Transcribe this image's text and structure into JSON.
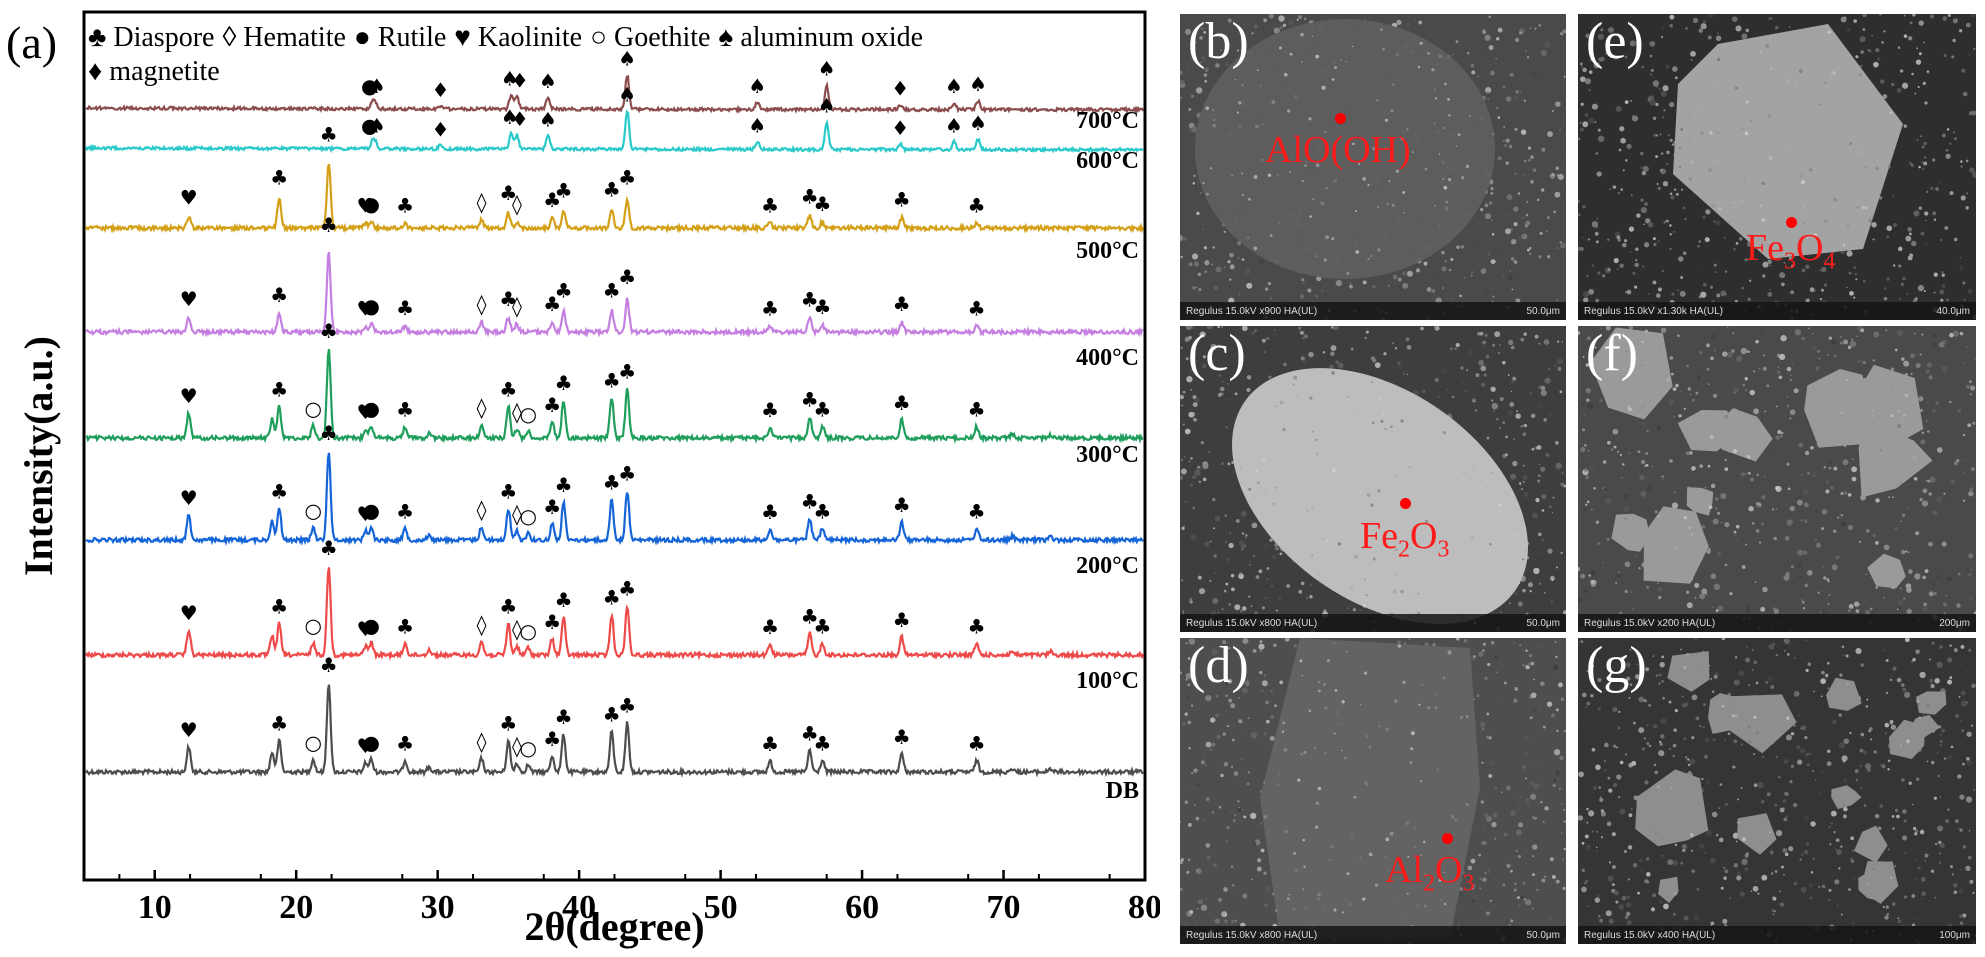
{
  "panel_a": {
    "label": "(a)",
    "xlabel": "2θ(degree)",
    "ylabel": "Intensity(a.u.)",
    "legend_line1": [
      {
        "symbol": "♣",
        "name": "Diaspore"
      },
      {
        "symbol": "◊",
        "name": "Hematite"
      },
      {
        "symbol": "●",
        "name": "Rutile"
      },
      {
        "symbol": "♥",
        "name": "Kaolinite"
      },
      {
        "symbol": "○",
        "name": "Goethite"
      },
      {
        "symbol": "♠",
        "name": "aluminum oxide"
      }
    ],
    "legend_line2": [
      {
        "symbol": "♦",
        "name": "magnetite"
      }
    ]
  },
  "chart_data": {
    "type": "line",
    "xlabel": "2θ(degree)",
    "ylabel": "Intensity(a.u.)",
    "xlim": [
      5,
      80
    ],
    "x_ticks": [
      10,
      20,
      30,
      40,
      50,
      60,
      70,
      80
    ],
    "grid": false,
    "series": [
      {
        "name": "DB",
        "color": "#4d4d4d",
        "peaks": [
          [
            12.4,
            0.28
          ],
          [
            18.3,
            0.22
          ],
          [
            18.8,
            0.35
          ],
          [
            21.2,
            0.14
          ],
          [
            22.3,
            1.0
          ],
          [
            24.9,
            0.1
          ],
          [
            25.3,
            0.14
          ],
          [
            27.7,
            0.13
          ],
          [
            29.4,
            0.06
          ],
          [
            33.1,
            0.15
          ],
          [
            35.0,
            0.35
          ],
          [
            35.6,
            0.1
          ],
          [
            36.4,
            0.08
          ],
          [
            38.1,
            0.18
          ],
          [
            38.9,
            0.42
          ],
          [
            42.3,
            0.45
          ],
          [
            43.4,
            0.55
          ],
          [
            53.5,
            0.12
          ],
          [
            56.3,
            0.24
          ],
          [
            57.2,
            0.13
          ],
          [
            62.8,
            0.2
          ],
          [
            68.1,
            0.13
          ],
          [
            70.6,
            0.04
          ],
          [
            73.3,
            0.04
          ]
        ]
      },
      {
        "name": "100°C",
        "color": "#ee4a4a",
        "peaks": [
          [
            12.4,
            0.28
          ],
          [
            18.3,
            0.22
          ],
          [
            18.8,
            0.35
          ],
          [
            21.2,
            0.14
          ],
          [
            22.3,
            1.0
          ],
          [
            24.9,
            0.1
          ],
          [
            25.3,
            0.14
          ],
          [
            27.7,
            0.13
          ],
          [
            29.4,
            0.06
          ],
          [
            33.1,
            0.15
          ],
          [
            35.0,
            0.35
          ],
          [
            35.6,
            0.1
          ],
          [
            36.4,
            0.08
          ],
          [
            38.1,
            0.18
          ],
          [
            38.9,
            0.42
          ],
          [
            42.3,
            0.45
          ],
          [
            43.4,
            0.55
          ],
          [
            53.5,
            0.12
          ],
          [
            56.3,
            0.24
          ],
          [
            57.2,
            0.13
          ],
          [
            62.8,
            0.2
          ],
          [
            68.1,
            0.13
          ],
          [
            70.6,
            0.04
          ],
          [
            73.3,
            0.04
          ]
        ]
      },
      {
        "name": "200°C",
        "color": "#1565d8",
        "peaks": [
          [
            12.4,
            0.28
          ],
          [
            18.3,
            0.22
          ],
          [
            18.8,
            0.35
          ],
          [
            21.2,
            0.14
          ],
          [
            22.3,
            1.0
          ],
          [
            24.9,
            0.1
          ],
          [
            25.3,
            0.14
          ],
          [
            27.7,
            0.13
          ],
          [
            29.4,
            0.06
          ],
          [
            33.1,
            0.15
          ],
          [
            35.0,
            0.35
          ],
          [
            35.6,
            0.1
          ],
          [
            36.4,
            0.08
          ],
          [
            38.1,
            0.18
          ],
          [
            38.9,
            0.42
          ],
          [
            42.3,
            0.45
          ],
          [
            43.4,
            0.55
          ],
          [
            53.5,
            0.12
          ],
          [
            56.3,
            0.24
          ],
          [
            57.2,
            0.13
          ],
          [
            62.8,
            0.2
          ],
          [
            68.1,
            0.13
          ],
          [
            70.6,
            0.04
          ],
          [
            73.3,
            0.04
          ]
        ]
      },
      {
        "name": "300°C",
        "color": "#1f9e5c",
        "peaks": [
          [
            12.4,
            0.28
          ],
          [
            18.3,
            0.22
          ],
          [
            18.8,
            0.35
          ],
          [
            21.2,
            0.14
          ],
          [
            22.3,
            1.0
          ],
          [
            24.9,
            0.1
          ],
          [
            25.3,
            0.14
          ],
          [
            27.7,
            0.13
          ],
          [
            29.4,
            0.06
          ],
          [
            33.1,
            0.15
          ],
          [
            35.0,
            0.35
          ],
          [
            35.6,
            0.1
          ],
          [
            36.4,
            0.08
          ],
          [
            38.1,
            0.18
          ],
          [
            38.9,
            0.42
          ],
          [
            42.3,
            0.45
          ],
          [
            43.4,
            0.55
          ],
          [
            53.5,
            0.12
          ],
          [
            56.3,
            0.24
          ],
          [
            57.2,
            0.13
          ],
          [
            62.8,
            0.2
          ],
          [
            68.1,
            0.13
          ],
          [
            70.6,
            0.04
          ],
          [
            73.3,
            0.04
          ]
        ]
      },
      {
        "name": "400°C",
        "color": "#c57fe0",
        "peaks": [
          [
            12.4,
            0.18
          ],
          [
            18.8,
            0.22
          ],
          [
            22.3,
            1.0
          ],
          [
            24.9,
            0.07
          ],
          [
            25.3,
            0.1
          ],
          [
            27.7,
            0.08
          ],
          [
            33.1,
            0.12
          ],
          [
            35.0,
            0.18
          ],
          [
            35.6,
            0.1
          ],
          [
            38.1,
            0.12
          ],
          [
            38.9,
            0.27
          ],
          [
            42.3,
            0.27
          ],
          [
            43.4,
            0.42
          ],
          [
            53.5,
            0.07
          ],
          [
            56.3,
            0.17
          ],
          [
            57.2,
            0.09
          ],
          [
            62.8,
            0.12
          ],
          [
            68.1,
            0.07
          ]
        ]
      },
      {
        "name": "500°C",
        "color": "#d4a017",
        "peaks": [
          [
            12.4,
            0.15
          ],
          [
            18.8,
            0.37
          ],
          [
            22.3,
            0.85
          ],
          [
            24.9,
            0.06
          ],
          [
            25.3,
            0.08
          ],
          [
            27.7,
            0.06
          ],
          [
            33.1,
            0.1
          ],
          [
            35.0,
            0.2
          ],
          [
            35.6,
            0.08
          ],
          [
            38.1,
            0.12
          ],
          [
            38.9,
            0.23
          ],
          [
            42.3,
            0.24
          ],
          [
            43.4,
            0.37
          ],
          [
            53.5,
            0.06
          ],
          [
            56.3,
            0.16
          ],
          [
            57.2,
            0.08
          ],
          [
            62.8,
            0.13
          ],
          [
            68.1,
            0.06
          ]
        ]
      },
      {
        "name": "600°C",
        "color": "#2bc9c9",
        "peaks": [
          [
            25.4,
            0.13
          ],
          [
            25.6,
            0.1
          ],
          [
            30.2,
            0.06
          ],
          [
            35.2,
            0.28
          ],
          [
            35.6,
            0.24
          ],
          [
            37.8,
            0.23
          ],
          [
            43.4,
            0.66
          ],
          [
            52.6,
            0.13
          ],
          [
            57.5,
            0.47
          ],
          [
            62.7,
            0.09
          ],
          [
            66.5,
            0.13
          ],
          [
            68.2,
            0.17
          ]
        ]
      },
      {
        "name": "700°C",
        "color": "#8b4d4d",
        "peaks": [
          [
            25.4,
            0.13
          ],
          [
            25.6,
            0.1
          ],
          [
            30.2,
            0.06
          ],
          [
            35.2,
            0.28
          ],
          [
            35.6,
            0.24
          ],
          [
            37.8,
            0.23
          ],
          [
            43.4,
            0.66
          ],
          [
            52.6,
            0.13
          ],
          [
            57.5,
            0.47
          ],
          [
            62.7,
            0.09
          ],
          [
            66.5,
            0.13
          ],
          [
            68.2,
            0.17
          ]
        ]
      }
    ],
    "low_temp_markers": [
      {
        "x": 12.4,
        "symbol": "♥"
      },
      {
        "x": 18.8,
        "symbol": "♣"
      },
      {
        "x": 21.2,
        "symbol": "○"
      },
      {
        "x": 22.3,
        "symbol": "♣"
      },
      {
        "x": 24.9,
        "symbol": "♥"
      },
      {
        "x": 25.3,
        "symbol": "●"
      },
      {
        "x": 27.7,
        "symbol": "♣"
      },
      {
        "x": 33.1,
        "symbol": "◊"
      },
      {
        "x": 35.0,
        "symbol": "♣"
      },
      {
        "x": 35.6,
        "symbol": "◊"
      },
      {
        "x": 36.4,
        "symbol": "○"
      },
      {
        "x": 38.1,
        "symbol": "♣"
      },
      {
        "x": 38.9,
        "symbol": "♣"
      },
      {
        "x": 42.3,
        "symbol": "♣"
      },
      {
        "x": 43.4,
        "symbol": "♣"
      },
      {
        "x": 53.5,
        "symbol": "♣"
      },
      {
        "x": 56.3,
        "symbol": "♣"
      },
      {
        "x": 57.2,
        "symbol": "♣"
      },
      {
        "x": 62.8,
        "symbol": "♣"
      },
      {
        "x": 68.1,
        "symbol": "♣"
      }
    ],
    "mid_temp_markers": [
      {
        "x": 12.4,
        "symbol": "♥"
      },
      {
        "x": 18.8,
        "symbol": "♣"
      },
      {
        "x": 22.3,
        "symbol": "♣"
      },
      {
        "x": 24.9,
        "symbol": "♥"
      },
      {
        "x": 25.3,
        "symbol": "●"
      },
      {
        "x": 27.7,
        "symbol": "♣"
      },
      {
        "x": 33.1,
        "symbol": "◊"
      },
      {
        "x": 35.0,
        "symbol": "♣"
      },
      {
        "x": 35.6,
        "symbol": "◊"
      },
      {
        "x": 38.1,
        "symbol": "♣"
      },
      {
        "x": 38.9,
        "symbol": "♣"
      },
      {
        "x": 42.3,
        "symbol": "♣"
      },
      {
        "x": 43.4,
        "symbol": "♣"
      },
      {
        "x": 53.5,
        "symbol": "♣"
      },
      {
        "x": 56.3,
        "symbol": "♣"
      },
      {
        "x": 57.2,
        "symbol": "♣"
      },
      {
        "x": 62.8,
        "symbol": "♣"
      },
      {
        "x": 68.1,
        "symbol": "♣"
      }
    ],
    "high_temp_markers": [
      {
        "x": 25.2,
        "symbol": "●"
      },
      {
        "x": 25.7,
        "symbol": "♠"
      },
      {
        "x": 30.2,
        "symbol": "♦"
      },
      {
        "x": 35.1,
        "symbol": "♠"
      },
      {
        "x": 35.8,
        "symbol": "♦"
      },
      {
        "x": 37.8,
        "symbol": "♠"
      },
      {
        "x": 43.4,
        "symbol": "♠"
      },
      {
        "x": 52.6,
        "symbol": "♠"
      },
      {
        "x": 57.5,
        "symbol": "♠"
      },
      {
        "x": 62.7,
        "symbol": "♦"
      },
      {
        "x": 66.5,
        "symbol": "♠"
      },
      {
        "x": 68.2,
        "symbol": "♠"
      }
    ]
  },
  "sem_panels": [
    {
      "letter": "(b)",
      "mineral_main": "AlO(OH)",
      "mineral_sub": "",
      "mineral_rest": "",
      "footer_left": "Regulus 15.0kV x900 HA(UL)",
      "footer_right": "50.0μm",
      "base": "#4a4a4a",
      "particle": "#5e5e5e"
    },
    {
      "letter": "(c)",
      "mineral_main": "Fe",
      "mineral_sub": "2",
      "mineral_rest": "O",
      "mineral_sub2": "3",
      "footer_left": "Regulus 15.0kV x800 HA(UL)",
      "footer_right": "50.0μm",
      "base": "#3e3e3e",
      "particle": "#bdbdbd"
    },
    {
      "letter": "(d)",
      "mineral_main": "Al",
      "mineral_sub": "2",
      "mineral_rest": "O",
      "mineral_sub2": "3",
      "footer_left": "Regulus 15.0kV x800 HA(UL)",
      "footer_right": "50.0μm",
      "base": "#4e4e4e",
      "particle": "#636363"
    },
    {
      "letter": "(e)",
      "mineral_main": "Fe",
      "mineral_sub": "3",
      "mineral_rest": "O",
      "mineral_sub2": "4",
      "footer_left": "Regulus 15.0kV x1.30k HA(UL)",
      "footer_right": "40.0μm",
      "base": "#2e2e2e",
      "particle": "#a3a3a3"
    },
    {
      "letter": "(f)",
      "mineral_main": "",
      "mineral_sub": "",
      "mineral_rest": "",
      "footer_left": "Regulus 15.0kV x200 HA(UL)",
      "footer_right": "200μm",
      "base": "#4a4a4a",
      "particle": "#9a9a9a"
    },
    {
      "letter": "(g)",
      "mineral_main": "",
      "mineral_sub": "",
      "mineral_rest": "",
      "footer_left": "Regulus 15.0kV x400 HA(UL)",
      "footer_right": "100μm",
      "base": "#353535",
      "particle": "#8e8e8e"
    }
  ]
}
